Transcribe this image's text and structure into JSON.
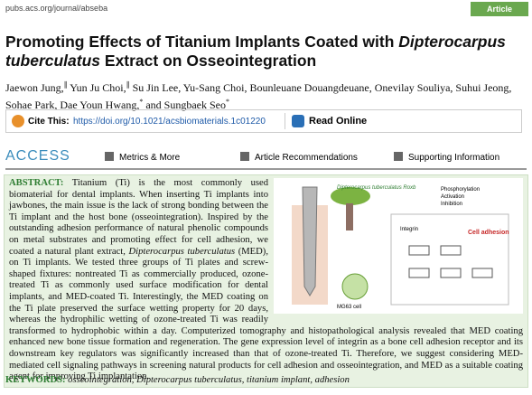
{
  "header": {
    "url": "pubs.acs.org/journal/abseba",
    "badge": "Article"
  },
  "title": [
    "Promoting Effects of Titanium Implants Coated with ",
    "Dipterocarpus tuberculatus",
    " Extract on Osseointegration"
  ],
  "authors": [
    {
      "text": "Jaewon Jung,",
      "sup": "∥"
    },
    {
      "text": " Yun Ju Choi,",
      "sup": "∥"
    },
    {
      "text": " Su Jin Lee, Yu-Sang Choi, Bounleuane Douangdeuane, Onevilay Souliya, Suhui Jeong, Sohae Park, Dae Youn Hwang,",
      "sup": "*"
    },
    {
      "text": " and Sungbaek Seo",
      "sup": "*"
    }
  ],
  "cite": {
    "label": "Cite This:",
    "doi": "https://doi.org/10.1021/acsbiomaterials.1c01220",
    "read": "Read Online"
  },
  "access": {
    "heading": "ACCESS",
    "items": [
      "Metrics & More",
      "Article Recommendations",
      "Supporting Information"
    ]
  },
  "abstract": {
    "heading": "ABSTRACT:",
    "parts": [
      " Titanium (Ti) is the most commonly used biomaterial for dental implants. When inserting Ti implants into jawbones, the main issue is the lack of strong bonding between the Ti implant and the host bone (osseointegration). Inspired by the outstanding adhesion performance of natural phenolic compounds on metal substrates and promoting effect for cell adhesion, we coated a natural plant extract, ",
      "Dipterocarpus tuberculatus",
      " (MED), on Ti implants. We tested three groups of Ti plates and screw-shaped fixtures: nontreated Ti as commercially produced, ozone-treated Ti as commonly used surface modification for dental implants, and MED-coated Ti. Interestingly, the MED coating on the Ti plate preserved the surface wetting property for 20 days, whereas the hydrophilic wetting of ozone-treated Ti was readily transformed to hydrophobic within a day. Computerized tomography and histopathological analysis revealed that MED coating enhanced new bone tissue formation and regeneration. The gene expression level of integrin as a bone cell adhesion receptor and its downstream key regulators was significantly increased than that of ozone-treated Ti. Therefore, we suggest considering MED-mediated cell signaling pathways in screening natural products for cell adhesion and osseointegration, and MED as a suitable coating agent for improving Ti implantation."
    ]
  },
  "figure": {
    "plant": "Dipterocarpus tuberculatus Roxb",
    "legend": [
      "Phosphorylation",
      "Activation",
      "Inhibition"
    ],
    "adhesion": "Cell adhesion",
    "integrin": "Integrin",
    "cell": "MG63 cell"
  },
  "keywords": {
    "heading": "KEYWORDS:",
    "parts": [
      " osseointegration, ",
      "Dipterocarpus tuberculatus",
      ", titanium implant, adhesion"
    ]
  }
}
